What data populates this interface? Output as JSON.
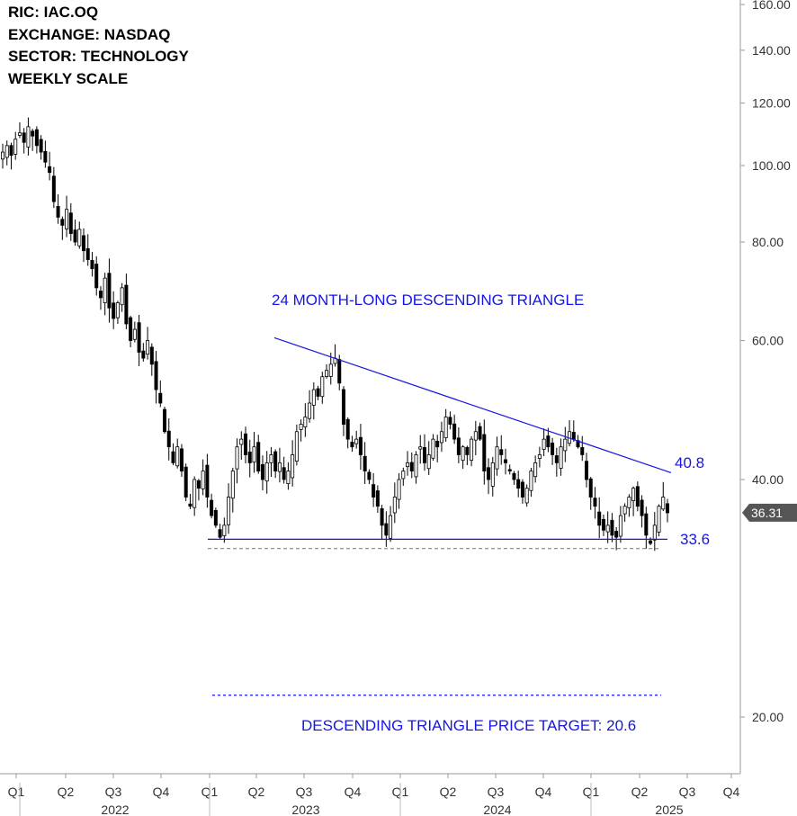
{
  "info": {
    "ric": "RIC:  IAC.OQ",
    "exchange": "EXCHANGE: NASDAQ",
    "sector": "SECTOR: TECHNOLOGY",
    "scale": "WEEKLY SCALE"
  },
  "chart_data": {
    "type": "candlestick",
    "y_scale": "log",
    "ylim": [
      17.2,
      162
    ],
    "y_ticks": [
      "20.00",
      "40.00",
      "60.00",
      "80.00",
      "100.00",
      "120.00",
      "140.00",
      "160.00"
    ],
    "last_price_label": "36.31",
    "x_ticks": [
      "Q1",
      "Q2",
      "Q3",
      "Q4",
      "Q1",
      "Q2",
      "Q3",
      "Q4",
      "Q1",
      "Q2",
      "Q3",
      "Q4",
      "Q1",
      "Q2",
      "Q3",
      "Q4"
    ],
    "x_years": [
      "2022",
      "2023",
      "2024",
      "2025"
    ],
    "annotations": {
      "pattern_title": "24 MONTH-LONG DESCENDING TRIANGLE",
      "resistance_label": "40.8",
      "support_label": "33.6",
      "target_label": "DESCENDING TRIANGLE PRICE TARGET: 20.6"
    },
    "lines": {
      "resistance": {
        "start": [
          "2023-Q3 start",
          60.5
        ],
        "end": [
          "2025-Q2 end",
          40.8
        ]
      },
      "support": 33.6,
      "support_dashed": 32.7,
      "price_target": 20.6
    },
    "series_approx_weekly_close": [
      104,
      106,
      103,
      108,
      110,
      107,
      112,
      109,
      106,
      104,
      101,
      98,
      90,
      86,
      84,
      88,
      82,
      80,
      83,
      78,
      76,
      74,
      70,
      68,
      72,
      66,
      64,
      67,
      70,
      63,
      60,
      62,
      58,
      57,
      60,
      56,
      52,
      50,
      46,
      44,
      42,
      44,
      41,
      38,
      37,
      40,
      39,
      41,
      38,
      36,
      35,
      33.8,
      35,
      38,
      41,
      44,
      45,
      43,
      42,
      44,
      41,
      40,
      42,
      43,
      41,
      42,
      40,
      41,
      43,
      46,
      47,
      48,
      50,
      52,
      51,
      54,
      55,
      56,
      57,
      53,
      47,
      45,
      44,
      45,
      43,
      41,
      40,
      38,
      37,
      35,
      34,
      36,
      38,
      40,
      41,
      42,
      41,
      43,
      44,
      42,
      43,
      45,
      44,
      46,
      48,
      47,
      45,
      43,
      44,
      43,
      45,
      46,
      45,
      41,
      40,
      42,
      44,
      43,
      42,
      41,
      40,
      39,
      38,
      39,
      41,
      42,
      43,
      45,
      44,
      43,
      42,
      44,
      45,
      46,
      45,
      44,
      43,
      40,
      38,
      37,
      35,
      34.5,
      35,
      34,
      33.8,
      36,
      37,
      38,
      39,
      37,
      36,
      34,
      33.2,
      35,
      37,
      38,
      36.3
    ]
  }
}
